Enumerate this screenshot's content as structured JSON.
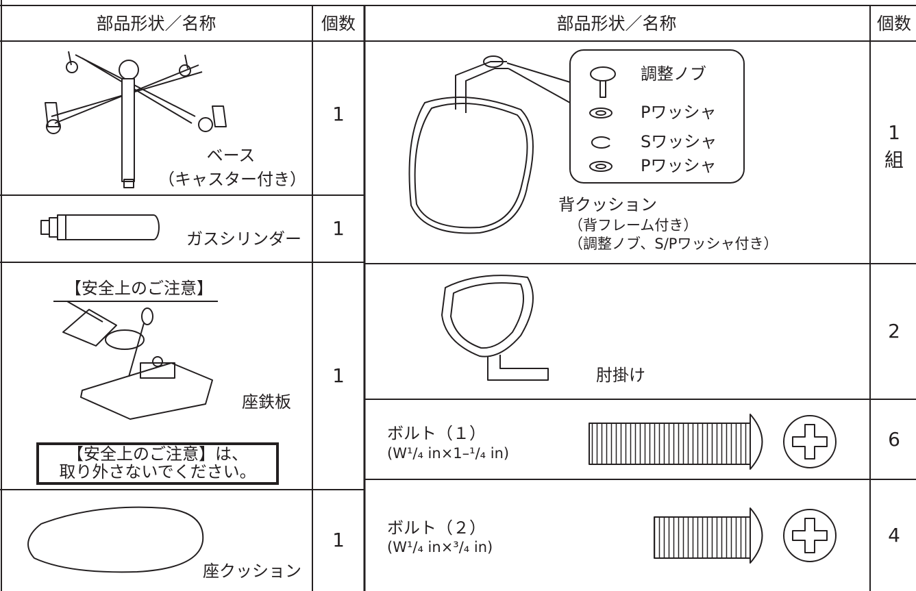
{
  "table": {
    "header": {
      "left_name": "部品形状／名称",
      "left_count": "個数",
      "right_name": "部品形状／名称",
      "right_count": "個数"
    },
    "left_rows": [
      {
        "name": "ベース",
        "note": "（キャスター付き）",
        "count": "1"
      },
      {
        "name": "ガスシリンダー",
        "count": "1"
      },
      {
        "label": "【安全上のご注意】",
        "name": "座鉄板",
        "warning": [
          "【安全上のご注意】は、",
          "取り外さないでください。"
        ],
        "count": "1"
      },
      {
        "name": "座クッション",
        "count": "1"
      }
    ],
    "right_rows": [
      {
        "callout": [
          "調整ノブ",
          "Pワッシャ",
          "Sワッシャ",
          "Pワッシャ"
        ],
        "name": "背クッション",
        "notes": [
          "（背フレーム付き）",
          "（調整ノブ、S/Pワッシャ付き）"
        ],
        "count": "1",
        "unit": "組"
      },
      {
        "name": "肘掛け",
        "count": "2"
      },
      {
        "name": "ボルト（１）",
        "size": "(W¹/₄ in×1–¹/₄ in)",
        "count": "6"
      },
      {
        "name": "ボルト（２）",
        "size": "(W¹/₄ in×³/₄ in)",
        "count": "4"
      }
    ]
  }
}
